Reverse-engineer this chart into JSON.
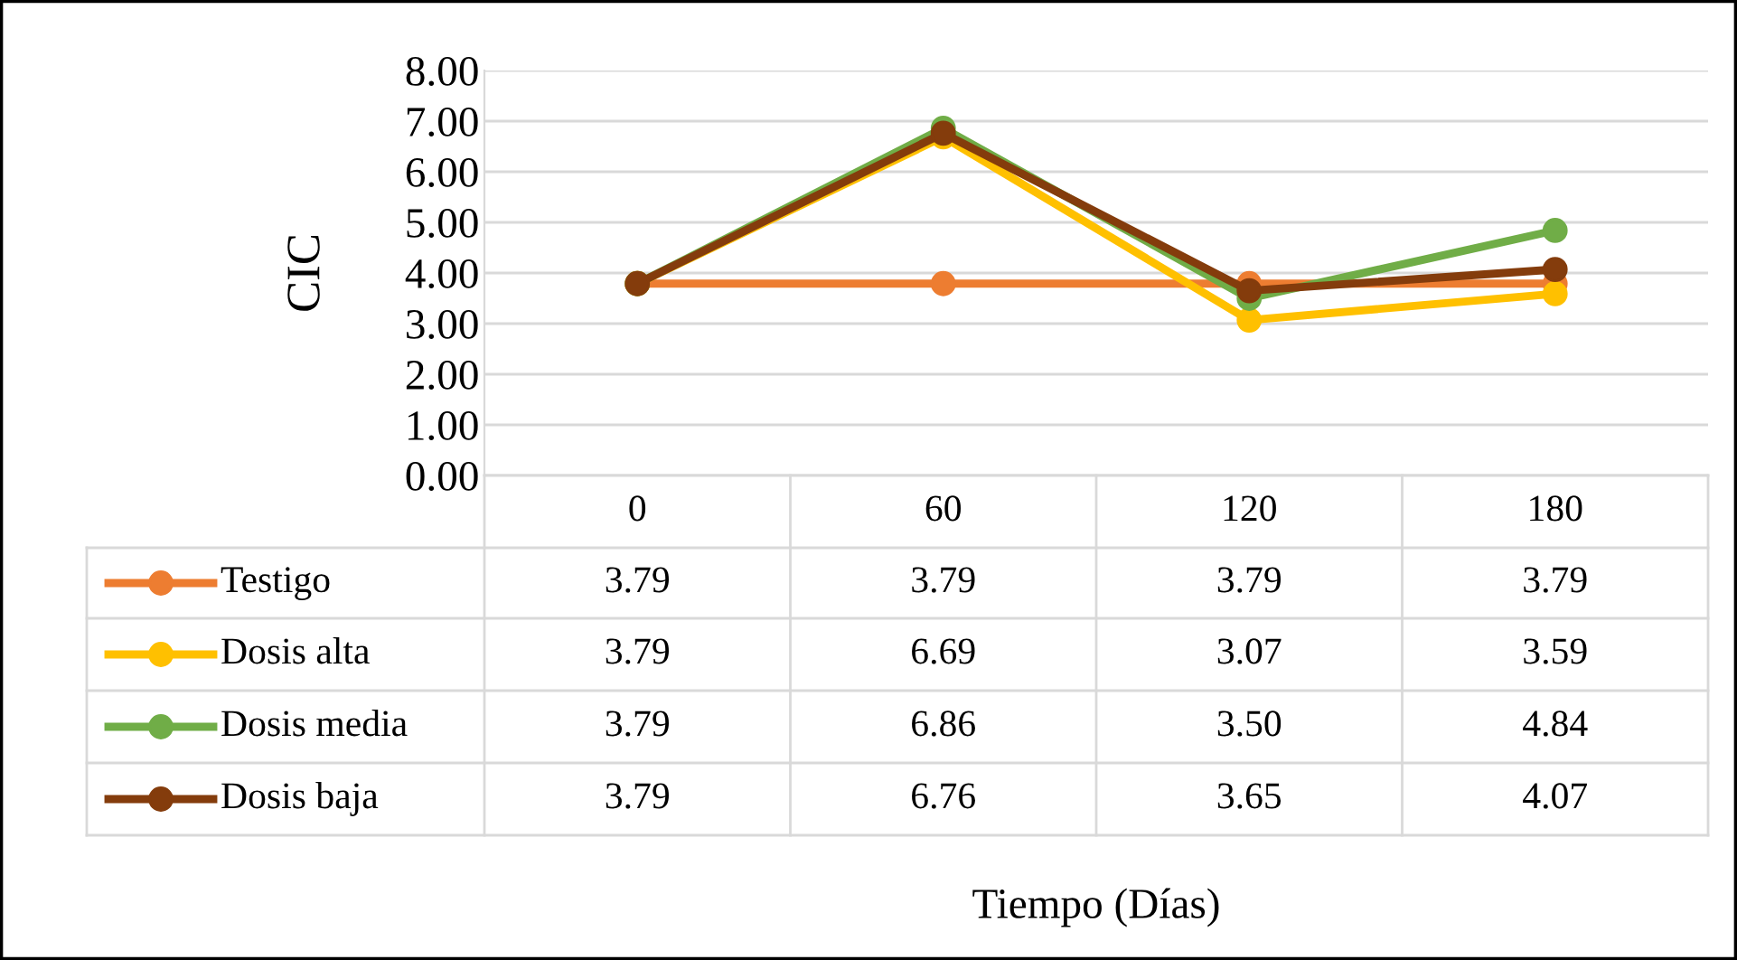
{
  "chart_data": {
    "type": "line",
    "annotations": [
      "Tiempo (Días)"
    ],
    "ylabel": "CIC",
    "categories": [
      "0",
      "60",
      "120",
      "180"
    ],
    "series": [
      {
        "name": "Testigo",
        "color": "#ed7d31",
        "values": [
          3.79,
          3.79,
          3.79,
          3.79
        ],
        "value_labels": [
          "3.79",
          "3.79",
          "3.79",
          "3.79"
        ]
      },
      {
        "name": "Dosis alta",
        "color": "#ffc000",
        "values": [
          3.79,
          6.69,
          3.07,
          3.59
        ],
        "value_labels": [
          "3.79",
          "6.69",
          "3.07",
          "3.59"
        ]
      },
      {
        "name": "Dosis media",
        "color": "#70ad47",
        "values": [
          3.79,
          6.86,
          3.5,
          4.84
        ],
        "value_labels": [
          "3.79",
          "6.86",
          "3.50",
          "4.84"
        ]
      },
      {
        "name": "Dosis baja",
        "color": "#843c0c",
        "values": [
          3.79,
          6.76,
          3.65,
          4.07
        ],
        "value_labels": [
          "3.79",
          "6.76",
          "3.65",
          "4.07"
        ]
      }
    ],
    "ylim": [
      0,
      8
    ],
    "yticks": [
      {
        "value": 0,
        "label": "0.00"
      },
      {
        "value": 1,
        "label": "1.00"
      },
      {
        "value": 2,
        "label": "2.00"
      },
      {
        "value": 3,
        "label": "3.00"
      },
      {
        "value": 4,
        "label": "4.00"
      },
      {
        "value": 5,
        "label": "5.00"
      },
      {
        "value": 6,
        "label": "6.00"
      },
      {
        "value": 7,
        "label": "7.00"
      },
      {
        "value": 8,
        "label": "8.00"
      }
    ],
    "grid": "y",
    "legend": "bottom",
    "marker": "circle",
    "line_style": "solid"
  }
}
